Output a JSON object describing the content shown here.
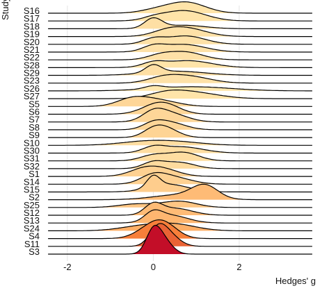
{
  "chart_data": {
    "type": "ridgeline",
    "xlabel": "Hedges' g",
    "ylabel": "Study",
    "xlim": [
      -2.5,
      3.75
    ],
    "x_ticks": [
      "-2",
      "0",
      "2"
    ],
    "x_tick_values": [
      -2,
      0,
      2
    ],
    "grid": true,
    "color_scale": {
      "low": "#ffffcc",
      "mid": "#fd8d3c",
      "high": "#bd0026"
    },
    "series": [
      {
        "name": "S16",
        "peaks": [
          [
            0.0,
            0.35,
            0.18
          ],
          [
            0.75,
            0.45,
            0.8
          ]
        ],
        "shade": 0.12
      },
      {
        "name": "S17",
        "peaks": [
          [
            0.0,
            0.25,
            0.15
          ],
          [
            0.7,
            0.5,
            0.75
          ]
        ],
        "shade": 0.12
      },
      {
        "name": "S18",
        "peaks": [
          [
            0.0,
            0.2,
            0.7
          ],
          [
            0.7,
            0.5,
            0.25
          ]
        ],
        "shade": 0.14
      },
      {
        "name": "S19",
        "peaks": [
          [
            0.3,
            0.35,
            0.3
          ],
          [
            0.8,
            0.45,
            0.55
          ]
        ],
        "shade": 0.13
      },
      {
        "name": "S20",
        "peaks": [
          [
            0.0,
            0.25,
            0.35
          ],
          [
            0.75,
            0.45,
            0.6
          ]
        ],
        "shade": 0.13
      },
      {
        "name": "S21",
        "peaks": [
          [
            0.0,
            0.25,
            0.35
          ],
          [
            0.7,
            0.5,
            0.55
          ]
        ],
        "shade": 0.13
      },
      {
        "name": "S22",
        "peaks": [
          [
            0.15,
            0.3,
            0.3
          ],
          [
            0.75,
            0.4,
            0.55
          ]
        ],
        "shade": 0.13
      },
      {
        "name": "S28",
        "peaks": [
          [
            0.0,
            0.25,
            0.3
          ],
          [
            0.8,
            0.55,
            0.5
          ]
        ],
        "shade": 0.12
      },
      {
        "name": "S29",
        "peaks": [
          [
            0.0,
            0.18,
            0.55
          ],
          [
            0.5,
            0.7,
            0.3
          ]
        ],
        "shade": 0.14
      },
      {
        "name": "S23",
        "peaks": [
          [
            0.2,
            0.35,
            0.3
          ],
          [
            0.8,
            0.5,
            0.5
          ]
        ],
        "shade": 0.13
      },
      {
        "name": "S26",
        "peaks": [
          [
            0.0,
            0.2,
            0.2
          ],
          [
            0.9,
            0.9,
            0.3
          ]
        ],
        "shade": 0.1
      },
      {
        "name": "S27",
        "peaks": [
          [
            0.3,
            0.4,
            0.3
          ],
          [
            0.9,
            0.6,
            0.45
          ]
        ],
        "shade": 0.12
      },
      {
        "name": "S5",
        "peaks": [
          [
            -0.5,
            0.35,
            0.5
          ],
          [
            0.1,
            0.45,
            0.45
          ]
        ],
        "shade": 0.18
      },
      {
        "name": "S6",
        "peaks": [
          [
            0.0,
            0.35,
            0.4
          ],
          [
            0.3,
            0.35,
            0.55
          ]
        ],
        "shade": 0.18
      },
      {
        "name": "S7",
        "peaks": [
          [
            0.0,
            0.25,
            0.5
          ],
          [
            0.35,
            0.4,
            0.65
          ]
        ],
        "shade": 0.18
      },
      {
        "name": "S8",
        "peaks": [
          [
            0.0,
            0.25,
            0.4
          ],
          [
            0.4,
            0.35,
            0.5
          ]
        ],
        "shade": 0.18
      },
      {
        "name": "S9",
        "peaks": [
          [
            0.0,
            0.25,
            0.45
          ],
          [
            0.3,
            0.3,
            0.6
          ]
        ],
        "shade": 0.19
      },
      {
        "name": "S10",
        "peaks": [
          [
            -0.2,
            0.6,
            0.25
          ],
          [
            0.6,
            0.6,
            0.2
          ]
        ],
        "shade": 0.15
      },
      {
        "name": "S30",
        "peaks": [
          [
            0.0,
            0.25,
            0.35
          ],
          [
            0.65,
            0.5,
            0.45
          ]
        ],
        "shade": 0.15
      },
      {
        "name": "S31",
        "peaks": [
          [
            0.0,
            0.3,
            0.4
          ],
          [
            0.7,
            0.35,
            0.6
          ]
        ],
        "shade": 0.15
      },
      {
        "name": "S32",
        "peaks": [
          [
            0.0,
            0.25,
            0.45
          ],
          [
            0.6,
            0.35,
            0.45
          ]
        ],
        "shade": 0.16
      },
      {
        "name": "S1",
        "peaks": [
          [
            -0.2,
            0.35,
            0.55
          ],
          [
            0.3,
            0.35,
            0.4
          ]
        ],
        "shade": 0.2
      },
      {
        "name": "S14",
        "peaks": [
          [
            0.0,
            0.3,
            0.6
          ],
          [
            0.5,
            0.4,
            0.45
          ]
        ],
        "shade": 0.2
      },
      {
        "name": "S15",
        "peaks": [
          [
            0.0,
            0.15,
            0.8
          ],
          [
            0.35,
            0.45,
            0.55
          ]
        ],
        "shade": 0.22
      },
      {
        "name": "S2",
        "peaks": [
          [
            0.6,
            0.6,
            0.35
          ],
          [
            1.2,
            0.3,
            0.9
          ]
        ],
        "shade": 0.3
      },
      {
        "name": "S25",
        "peaks": [
          [
            -0.4,
            0.4,
            0.25
          ],
          [
            0.6,
            0.4,
            0.45
          ]
        ],
        "shade": 0.25
      },
      {
        "name": "S12",
        "peaks": [
          [
            0.0,
            0.2,
            0.7
          ],
          [
            0.5,
            0.4,
            0.5
          ]
        ],
        "shade": 0.3
      },
      {
        "name": "S13",
        "peaks": [
          [
            0.0,
            0.2,
            0.6
          ],
          [
            0.4,
            0.4,
            0.55
          ]
        ],
        "shade": 0.32
      },
      {
        "name": "S24",
        "peaks": [
          [
            -0.3,
            0.5,
            0.3
          ],
          [
            0.5,
            0.5,
            0.45
          ]
        ],
        "shade": 0.35
      },
      {
        "name": "S4",
        "peaks": [
          [
            0.0,
            0.35,
            0.9
          ],
          [
            0.3,
            0.3,
            0.6
          ]
        ],
        "shade": 0.55
      },
      {
        "name": "S11",
        "peaks": [
          [
            0.1,
            0.2,
            1.1
          ],
          [
            0.35,
            0.25,
            0.8
          ]
        ],
        "shade": 0.65
      },
      {
        "name": "S3",
        "peaks": [
          [
            0.0,
            0.17,
            1.6
          ],
          [
            0.25,
            0.2,
            0.9
          ]
        ],
        "shade": 0.95
      }
    ]
  }
}
